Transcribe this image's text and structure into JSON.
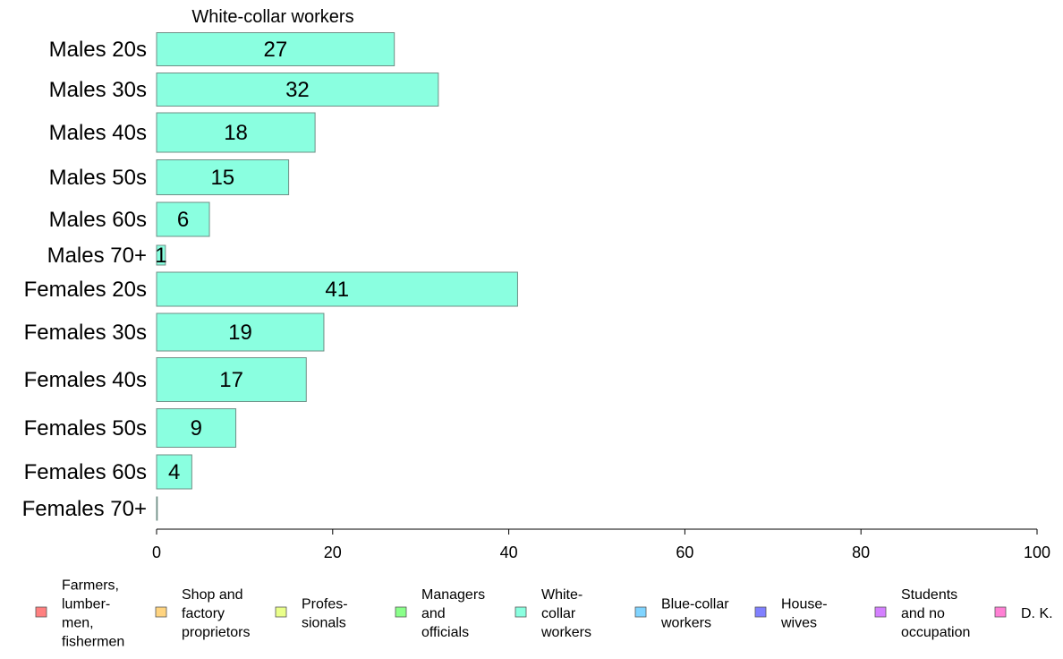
{
  "chart_data": {
    "type": "bar",
    "orientation": "horizontal",
    "title": "White-collar workers",
    "categories": [
      "Males 20s",
      "Males 30s",
      "Males 40s",
      "Males 50s",
      "Males 60s",
      "Males 70+",
      "Females 20s",
      "Females 30s",
      "Females 40s",
      "Females 50s",
      "Females 60s",
      "Females 70+"
    ],
    "values": [
      27,
      32,
      18,
      15,
      6,
      1,
      41,
      19,
      17,
      9,
      4,
      0
    ],
    "value_labels": [
      "27",
      "32",
      "18",
      "15",
      "6",
      "1",
      "41",
      "19",
      "17",
      "9",
      "4",
      ""
    ],
    "xlim": [
      0,
      100
    ],
    "xticks": [
      0,
      20,
      40,
      60,
      80,
      100
    ],
    "xtick_labels": [
      "0",
      "20",
      "40",
      "60",
      "80",
      "100"
    ],
    "bar_color": "#8affe0",
    "grid": false,
    "legend_position": "bottom",
    "legend": [
      {
        "label": [
          "Farmers,",
          "lumber-",
          "men,",
          "fishermen"
        ],
        "color": "#ff8080"
      },
      {
        "label": [
          "Shop and",
          "factory",
          "proprietors"
        ],
        "color": "#ffd480"
      },
      {
        "label": [
          "Profes-",
          "sionals"
        ],
        "color": "#eaff8a"
      },
      {
        "label": [
          "Managers",
          "and",
          "officials"
        ],
        "color": "#8aff8a"
      },
      {
        "label": [
          "White-",
          "collar",
          "workers"
        ],
        "color": "#8affe0"
      },
      {
        "label": [
          "Blue-collar",
          "workers"
        ],
        "color": "#80d4ff"
      },
      {
        "label": [
          "House-",
          "wives"
        ],
        "color": "#8080ff"
      },
      {
        "label": [
          "Students",
          "and no",
          "occupation"
        ],
        "color": "#d480ff"
      },
      {
        "label": [
          "D. K."
        ],
        "color": "#ff80d4"
      }
    ]
  }
}
